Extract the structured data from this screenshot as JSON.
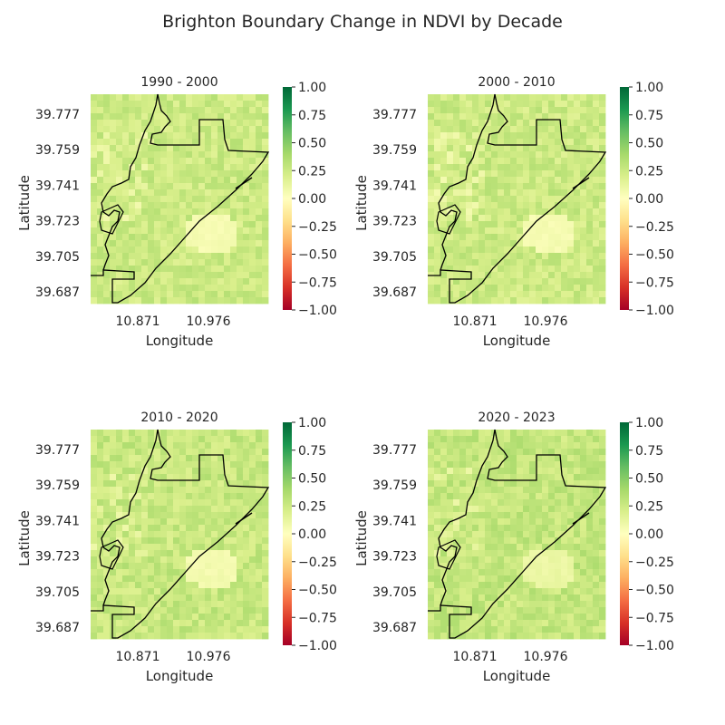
{
  "title": "Brighton Boundary Change in NDVI by Decade",
  "colors": {
    "colormap": [
      "#a50026",
      "#d73027",
      "#f46d43",
      "#fdae61",
      "#fee08b",
      "#ffffbf",
      "#d9ef8b",
      "#a6d96a",
      "#66bd63",
      "#1a9850",
      "#006837"
    ],
    "boundary": "#000000",
    "text": "#262626"
  },
  "chart_data": [
    {
      "type": "heatmap",
      "title": "1990 - 2000",
      "xlabel": "Longitude",
      "ylabel": "Latitude",
      "xticks": [
        "10.871",
        "10.976"
      ],
      "yticks": [
        "39.777",
        "39.759",
        "39.741",
        "39.723",
        "39.705",
        "39.687"
      ],
      "colorbar_ticks": [
        "1.00",
        "0.75",
        "0.50",
        "0.25",
        "0.00",
        "−0.25",
        "−0.50",
        "−0.75",
        "−1.00"
      ],
      "vmin": -1.0,
      "vmax": 1.0,
      "cmap": "RdYlGn",
      "typical_value": 0.25,
      "low_area_value": 0.05,
      "overlay": "city boundary outline",
      "grid": false
    },
    {
      "type": "heatmap",
      "title": "2000 - 2010",
      "xlabel": "Longitude",
      "ylabel": "Latitude",
      "xticks": [
        "10.871",
        "10.976"
      ],
      "yticks": [
        "39.777",
        "39.759",
        "39.741",
        "39.723",
        "39.705",
        "39.687"
      ],
      "colorbar_ticks": [
        "1.00",
        "0.75",
        "0.50",
        "0.25",
        "0.00",
        "−0.25",
        "−0.50",
        "−0.75",
        "−1.00"
      ],
      "vmin": -1.0,
      "vmax": 1.0,
      "cmap": "RdYlGn",
      "typical_value": 0.25,
      "low_area_value": 0.05,
      "overlay": "city boundary outline",
      "grid": false
    },
    {
      "type": "heatmap",
      "title": "2010 - 2020",
      "xlabel": "Longitude",
      "ylabel": "Latitude",
      "xticks": [
        "10.871",
        "10.976"
      ],
      "yticks": [
        "39.777",
        "39.759",
        "39.741",
        "39.723",
        "39.705",
        "39.687"
      ],
      "colorbar_ticks": [
        "1.00",
        "0.75",
        "0.50",
        "0.25",
        "0.00",
        "−0.25",
        "−0.50",
        "−0.75",
        "−1.00"
      ],
      "vmin": -1.0,
      "vmax": 1.0,
      "cmap": "RdYlGn",
      "typical_value": 0.27,
      "low_area_value": 0.06,
      "overlay": "city boundary outline",
      "grid": false
    },
    {
      "type": "heatmap",
      "title": "2020 - 2023",
      "xlabel": "Longitude",
      "ylabel": "Latitude",
      "xticks": [
        "10.871",
        "10.976"
      ],
      "yticks": [
        "39.777",
        "39.759",
        "39.741",
        "39.723",
        "39.705",
        "39.687"
      ],
      "colorbar_ticks": [
        "1.00",
        "0.75",
        "0.50",
        "0.25",
        "0.00",
        "−0.25",
        "−0.50",
        "−0.75",
        "−1.00"
      ],
      "vmin": -1.0,
      "vmax": 1.0,
      "cmap": "RdYlGn",
      "typical_value": 0.28,
      "low_area_value": 0.1,
      "overlay": "city boundary outline",
      "grid": false
    }
  ]
}
